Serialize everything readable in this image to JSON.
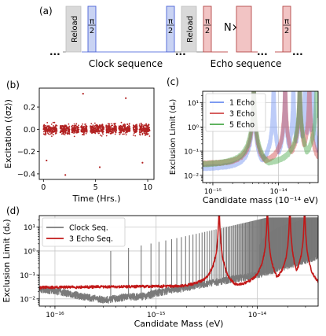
{
  "panel_a": {
    "label": "(a)",
    "reload1": "Reload",
    "pi": "π",
    "half": "2",
    "reload2": "Reload",
    "n_pi": "N× π",
    "clock_seq": "Clock sequence",
    "echo_seq": "Echo sequence",
    "dots": "...",
    "colors": {
      "reload": "#d9d9d9",
      "clock_pulse": "#c9d3f3",
      "clock_edge": "#4b63d8",
      "echo_pulse": "#f2c4c4",
      "echo_edge": "#b54a4a",
      "line_blue": "#6a7fe0",
      "line_red": "#c35a5a"
    }
  },
  "chart_data": [
    {
      "panel": "(b)",
      "type": "scatter",
      "xlabel": "Time (Hrs.)",
      "ylabel": "Excitation (⟨σz⟩)",
      "xlim": [
        -0.4,
        10.6
      ],
      "ylim": [
        -0.45,
        0.37
      ],
      "x_ticks": [
        0,
        5,
        10
      ],
      "x_tick_labels": [
        "0",
        "5",
        "10"
      ],
      "y_ticks": [
        -0.4,
        -0.2,
        0.0,
        0.2
      ],
      "y_tick_labels": [
        "−0.4",
        "−0.2",
        "0.0",
        "0.2"
      ],
      "grid": false,
      "color": "#b22222",
      "segments": [
        [
          0.0,
          1.3
        ],
        [
          1.6,
          2.5
        ],
        [
          2.7,
          3.4
        ],
        [
          3.6,
          4.2
        ],
        [
          4.5,
          5.8
        ],
        [
          6.0,
          7.0
        ],
        [
          7.2,
          8.3
        ],
        [
          8.6,
          9.0
        ],
        [
          9.2,
          10.2
        ]
      ],
      "typical_range": [
        -0.1,
        0.1
      ],
      "outliers": [
        {
          "x": 5.4,
          "y": -0.34
        },
        {
          "x": 2.1,
          "y": -0.41
        },
        {
          "x": 3.8,
          "y": 0.32
        },
        {
          "x": 7.9,
          "y": 0.28
        },
        {
          "x": 0.3,
          "y": -0.28
        },
        {
          "x": 9.5,
          "y": -0.3
        }
      ]
    },
    {
      "panel": "(c)",
      "type": "line",
      "xlabel": "Candidate mass (10⁻¹⁴ eV)",
      "ylabel": "Exclusion Limit (dₑ)",
      "x_scale": "log",
      "y_scale": "log",
      "xlim": [
        7e-16,
        4e-14
      ],
      "ylim": [
        0.005,
        30
      ],
      "x_tick_labels": [
        {
          "value": 1e-15,
          "label": "10⁻¹⁵"
        },
        {
          "value": 1e-14,
          "label": "10⁻¹⁴"
        }
      ],
      "y_tick_labels": [
        {
          "value": 0.01,
          "label": "10⁻²"
        },
        {
          "value": 0.1,
          "label": "10⁻¹"
        },
        {
          "value": 1,
          "label": "10⁰"
        },
        {
          "value": 10,
          "label": "10¹"
        }
      ],
      "grid": true,
      "legend_position": "top-left",
      "series": [
        {
          "name": "1 Echo",
          "color": "#6c8ef0",
          "peaks": [
            4.2e-15,
            8.4e-15,
            1.26e-14,
            1.68e-14,
            2.1e-14,
            2.52e-14,
            2.94e-14,
            3.36e-14
          ],
          "floor": 0.02
        },
        {
          "name": "3 Echo",
          "color": "#d04848",
          "peaks": [
            4.2e-15,
            1.26e-14,
            2.1e-14,
            2.94e-14
          ],
          "floor": 0.03
        },
        {
          "name": "5 Echo",
          "color": "#4aa84a",
          "peaks": [
            4.2e-15,
            2.1e-14,
            3.8e-14
          ],
          "floor": 0.025
        }
      ]
    },
    {
      "panel": "(d)",
      "type": "line",
      "xlabel": "Candidate Mass (eV)",
      "ylabel": "Exclusion Limit (dₑ)",
      "x_scale": "log",
      "y_scale": "log",
      "xlim": [
        7e-17,
        4e-14
      ],
      "ylim": [
        0.005,
        30
      ],
      "x_tick_labels": [
        {
          "value": 1e-16,
          "label": "10⁻¹⁶"
        },
        {
          "value": 1e-15,
          "label": "10⁻¹⁵"
        },
        {
          "value": 1e-14,
          "label": "10⁻¹⁴"
        }
      ],
      "y_tick_labels": [
        {
          "value": 0.01,
          "label": "10⁻²"
        },
        {
          "value": 0.1,
          "label": "10⁻¹"
        },
        {
          "value": 1,
          "label": "10⁰"
        },
        {
          "value": 10,
          "label": "10¹"
        }
      ],
      "grid": true,
      "legend_position": "top-left",
      "series": [
        {
          "name": "Clock Seq.",
          "color": "#7a7a7a",
          "floor_points": [
            {
              "x": 7e-17,
              "y": 0.025
            },
            {
              "x": 1e-16,
              "y": 0.022
            },
            {
              "x": 2e-16,
              "y": 0.012
            },
            {
              "x": 3.2e-16,
              "y": 0.009
            },
            {
              "x": 5e-16,
              "y": 0.012
            },
            {
              "x": 8e-16,
              "y": 0.013
            },
            {
              "x": 1e-15,
              "y": 0.018
            },
            {
              "x": 2e-15,
              "y": 0.03
            },
            {
              "x": 5e-15,
              "y": 0.06
            },
            {
              "x": 1e-14,
              "y": 0.1
            },
            {
              "x": 2e-14,
              "y": 0.25
            },
            {
              "x": 4e-14,
              "y": 0.6
            }
          ]
        },
        {
          "name": "3 Echo Seq.",
          "color": "#c21818",
          "floor": 0.03,
          "peaks": [
            4.2e-15,
            1.26e-14,
            2.1e-14,
            2.94e-14
          ]
        }
      ]
    }
  ],
  "panel_labels": {
    "b": "(b)",
    "c": "(c)",
    "d": "(d)"
  }
}
